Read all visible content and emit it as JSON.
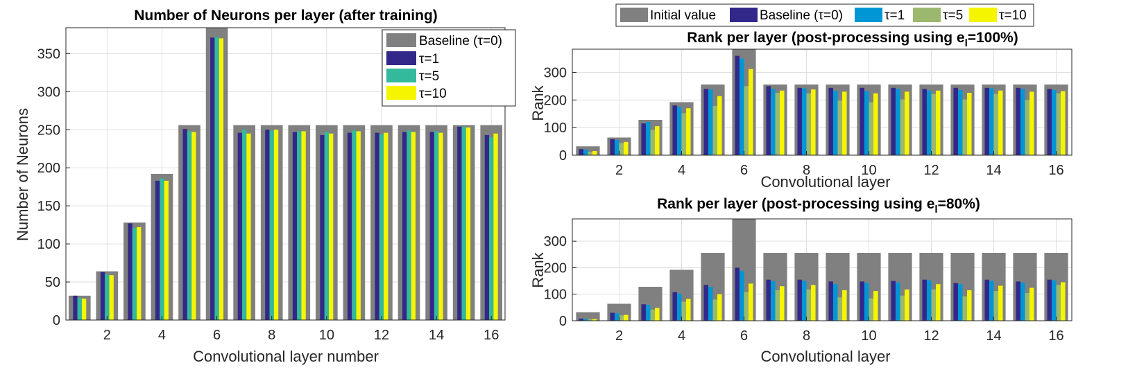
{
  "colors": {
    "initial": "#808080",
    "baseline": "#32288a",
    "tau1": "#0096d6",
    "tau5": "#9cb86e",
    "tau10": "#f5f500",
    "left_tau5": "#33b99c"
  },
  "chart_data": [
    {
      "type": "bar",
      "title": "Number of Neurons per layer (after training)",
      "xlabel": "Convolutional layer number",
      "ylabel": "Number of Neurons",
      "x": [
        1,
        2,
        3,
        4,
        5,
        6,
        7,
        8,
        9,
        10,
        11,
        12,
        13,
        14,
        15,
        16
      ],
      "x_ticks": [
        "2",
        "4",
        "6",
        "8",
        "10",
        "12",
        "14",
        "16"
      ],
      "y_ticks": [
        "0",
        "50",
        "100",
        "150",
        "200",
        "250",
        "300",
        "350"
      ],
      "xlim": [
        0.5,
        16.5
      ],
      "ylim": [
        0,
        384
      ],
      "grid": true,
      "legend": "top-right",
      "series": [
        {
          "name": "Baseline (τ=0)",
          "values": [
            32,
            64,
            128,
            192,
            256,
            384,
            256,
            256,
            256,
            256,
            256,
            256,
            256,
            256,
            256,
            256
          ]
        },
        {
          "name": "τ=1",
          "values": [
            32,
            63,
            127,
            183,
            251,
            371,
            246,
            250,
            247,
            243,
            246,
            246,
            247,
            247,
            254,
            243
          ]
        },
        {
          "name": "τ=5",
          "values": [
            29,
            60,
            121,
            186,
            248,
            372,
            250,
            249,
            248,
            247,
            249,
            244,
            249,
            248,
            254,
            240
          ]
        },
        {
          "name": "τ=10",
          "values": [
            28,
            59,
            122,
            183,
            247,
            370,
            245,
            250,
            248,
            245,
            248,
            246,
            247,
            246,
            253,
            245
          ]
        }
      ]
    },
    {
      "type": "bar",
      "title": "Rank per layer (post-processing using e",
      "title_sub": "l",
      "title_end": "=100%)",
      "xlabel": "Convolutional layer",
      "ylabel": "Rank",
      "x": [
        1,
        2,
        3,
        4,
        5,
        6,
        7,
        8,
        9,
        10,
        11,
        12,
        13,
        14,
        15,
        16
      ],
      "x_ticks": [
        "2",
        "4",
        "6",
        "8",
        "10",
        "12",
        "14",
        "16"
      ],
      "y_ticks": [
        "0",
        "100",
        "200",
        "300"
      ],
      "xlim": [
        0.5,
        16.5
      ],
      "ylim": [
        0,
        384
      ],
      "grid": true,
      "legend": "top-outside",
      "series": [
        {
          "name": "Initial value",
          "values": [
            32,
            64,
            128,
            192,
            256,
            384,
            256,
            256,
            256,
            256,
            256,
            256,
            256,
            256,
            256,
            256
          ]
        },
        {
          "name": "Baseline (τ=0)",
          "values": [
            22,
            58,
            115,
            180,
            240,
            360,
            250,
            244,
            244,
            244,
            244,
            240,
            244,
            244,
            244,
            240
          ]
        },
        {
          "name": "τ=1",
          "values": [
            20,
            55,
            120,
            175,
            238,
            350,
            240,
            242,
            234,
            232,
            240,
            234,
            236,
            242,
            240,
            236
          ]
        },
        {
          "name": "τ=5",
          "values": [
            12,
            44,
            92,
            152,
            178,
            250,
            226,
            224,
            198,
            192,
            202,
            222,
            202,
            222,
            200,
            224
          ]
        },
        {
          "name": "τ=10",
          "values": [
            15,
            48,
            105,
            170,
            214,
            312,
            234,
            238,
            230,
            224,
            230,
            234,
            226,
            234,
            230,
            232
          ]
        }
      ]
    },
    {
      "type": "bar",
      "title": "Rank per layer (post-processing using e",
      "title_sub": "l",
      "title_end": "=80%)",
      "xlabel": "Convolutional layer",
      "ylabel": "Rank",
      "x": [
        1,
        2,
        3,
        4,
        5,
        6,
        7,
        8,
        9,
        10,
        11,
        12,
        13,
        14,
        15,
        16
      ],
      "x_ticks": [
        "2",
        "4",
        "6",
        "8",
        "10",
        "12",
        "14",
        "16"
      ],
      "y_ticks": [
        "0",
        "100",
        "200",
        "300"
      ],
      "xlim": [
        0.5,
        16.5
      ],
      "ylim": [
        0,
        384
      ],
      "grid": true,
      "series": [
        {
          "name": "Initial value",
          "values": [
            32,
            64,
            128,
            192,
            256,
            384,
            256,
            256,
            256,
            256,
            256,
            256,
            256,
            256,
            256,
            256
          ]
        },
        {
          "name": "Baseline (τ=0)",
          "values": [
            8,
            30,
            62,
            108,
            135,
            200,
            155,
            155,
            148,
            148,
            150,
            155,
            142,
            155,
            148,
            155
          ]
        },
        {
          "name": "τ=1",
          "values": [
            6,
            28,
            60,
            102,
            128,
            188,
            150,
            150,
            138,
            142,
            144,
            152,
            138,
            150,
            144,
            152
          ]
        },
        {
          "name": "τ=5",
          "values": [
            5,
            20,
            42,
            72,
            80,
            108,
            115,
            118,
            88,
            84,
            95,
            118,
            92,
            112,
            104,
            135
          ]
        },
        {
          "name": "τ=10",
          "values": [
            6,
            22,
            48,
            82,
            100,
            140,
            130,
            135,
            115,
            112,
            118,
            138,
            115,
            132,
            124,
            145
          ]
        }
      ]
    }
  ]
}
